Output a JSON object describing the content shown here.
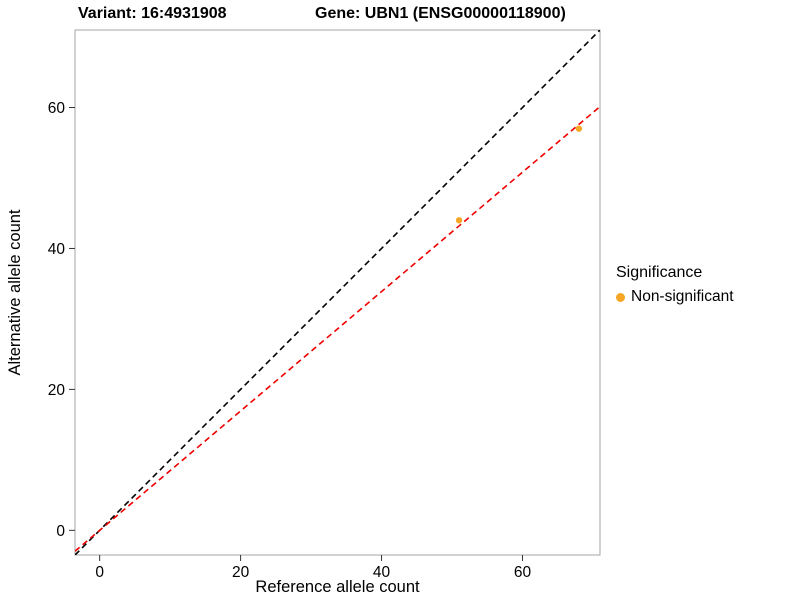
{
  "chart_data": {
    "type": "scatter",
    "title_left": "Variant: 16:4931908",
    "title_right": "Gene: UBN1 (ENSG00000118900)",
    "xlabel": "Reference allele count",
    "ylabel": "Alternative allele count",
    "xlim": [
      -3.5,
      71
    ],
    "ylim": [
      -3.5,
      71
    ],
    "xticks": [
      0,
      20,
      40,
      60
    ],
    "yticks": [
      0,
      20,
      40,
      60
    ],
    "grid": false,
    "panel_border_color": "#A6A6A6",
    "tick_color": "#333333",
    "point_color": "#F6A625",
    "points": [
      {
        "x": 51,
        "y": 44
      },
      {
        "x": 68,
        "y": 57
      }
    ],
    "lines": [
      {
        "name": "identity-line",
        "slope": 1,
        "intercept": 0,
        "color": "#000000",
        "style": "dashed"
      },
      {
        "name": "fit-line",
        "slope": 0.847,
        "intercept": 0,
        "color": "#EE0000",
        "style": "dashed"
      }
    ],
    "legend": {
      "position": "right",
      "title": "Significance",
      "entries": [
        {
          "label": "Non-significant",
          "color": "#F6A625"
        }
      ]
    }
  }
}
